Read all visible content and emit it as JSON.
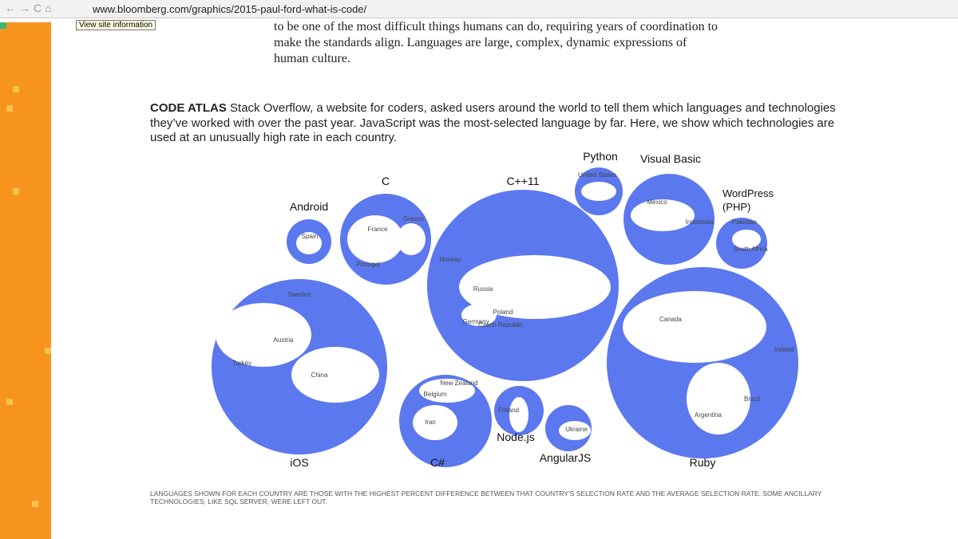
{
  "browser": {
    "url": "www.bloomberg.com/graphics/2015-paul-ford-what-is-code/",
    "tooltip": "View site information"
  },
  "intro": {
    "lines": [
      "to be one of the most difficult things humans can do, requiring years of coordination to",
      "make the standards align. Languages are large, complex, dynamic expressions of",
      "human culture."
    ]
  },
  "atlas": {
    "heading": "CODE ATLAS",
    "text": "Stack Overflow, a website for coders, asked users around the world to tell them which languages and technologies they’ve worked with over the past year. JavaScript was the most-selected language by far. Here, we show which technologies are used at an unusually high rate in each country.",
    "bubbles": [
      {
        "label": "iOS",
        "countries": [
          "Sweden",
          "Austria",
          "Turkey",
          "China"
        ]
      },
      {
        "label": "Android",
        "countries": [
          "Spain"
        ]
      },
      {
        "label": "C",
        "countries": [
          "France",
          "Greece",
          "Portugal"
        ]
      },
      {
        "label": "C++11",
        "countries": [
          "Norway",
          "Russia",
          "Poland",
          "Germany",
          "Czech Republic"
        ]
      },
      {
        "label": "C#",
        "countries": [
          "New Zealand",
          "Belgium",
          "Iran"
        ]
      },
      {
        "label": "Node.js",
        "countries": [
          "Finland"
        ]
      },
      {
        "label": "AngularJS",
        "countries": [
          "Ukraine"
        ]
      },
      {
        "label": "Python",
        "countries": [
          "United States"
        ]
      },
      {
        "label": "Visual Basic",
        "countries": [
          "Mexico",
          "Indonesia"
        ]
      },
      {
        "label": "WordPress (PHP)",
        "countries": [
          "Pakistan",
          "South Africa"
        ]
      },
      {
        "label": "Ruby",
        "countries": [
          "Canada",
          "Ireland",
          "Brazil",
          "Argentina"
        ]
      }
    ],
    "note": "LANGUAGES SHOWN FOR EACH COUNTRY ARE THOSE WITH THE HIGHEST PERCENT DIFFERENCE BETWEEN THAT COUNTRY'S SELECTION RATE AND THE AVERAGE SELECTION RATE. SOME ANCILLARY TECHNOLOGIES, LIKE SQL SERVER, WERE LEFT OUT."
  }
}
